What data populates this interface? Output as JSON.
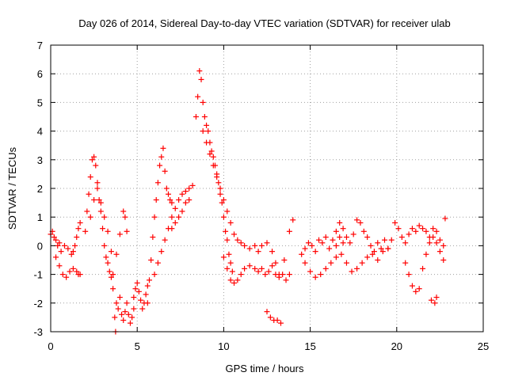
{
  "chart_data": {
    "type": "scatter",
    "title": "Day 026 of 2014, Sidereal Day-to-day VTEC variation (SDTVAR) for receiver ulab",
    "xlabel": "GPS time / hours",
    "ylabel": "SDTVAR / TECUs",
    "xlim": [
      0,
      25
    ],
    "ylim": [
      -3,
      7
    ],
    "xticks": [
      0,
      5,
      10,
      15,
      20,
      25
    ],
    "yticks": [
      -3,
      -2,
      -1,
      0,
      1,
      2,
      3,
      4,
      5,
      6,
      7
    ],
    "grid": true,
    "marker": "+",
    "series": [
      {
        "name": "SDTVAR",
        "color": "#ff0000",
        "x": [
          0.0,
          0.1,
          0.2,
          0.3,
          0.4,
          0.5,
          0.6,
          0.8,
          1.0,
          1.2,
          1.3,
          1.4,
          1.5,
          1.6,
          1.7,
          0.3,
          0.5,
          0.7,
          0.9,
          1.1,
          1.3,
          1.5,
          1.6,
          1.7,
          2.0,
          2.1,
          2.2,
          2.3,
          2.4,
          2.5,
          2.6,
          2.7,
          2.8,
          2.9,
          3.0,
          3.1,
          3.2,
          3.3,
          3.4,
          3.5,
          3.6,
          2.3,
          2.5,
          2.7,
          2.9,
          3.1,
          3.3,
          3.5,
          3.6,
          3.7,
          3.75,
          3.8,
          3.9,
          4.0,
          4.1,
          4.2,
          4.3,
          4.4,
          4.5,
          4.6,
          4.7,
          4.8,
          3.8,
          4.0,
          4.2,
          4.3,
          4.4,
          4.8,
          4.9,
          5.0,
          5.1,
          5.2,
          5.3,
          5.4,
          5.5,
          5.6,
          5.6,
          5.7,
          5.8,
          5.9,
          6.0,
          6.1,
          6.2,
          6.3,
          6.4,
          6.5,
          6.6,
          6.7,
          6.8,
          6.9,
          7.0,
          6.0,
          6.2,
          6.4,
          6.6,
          6.8,
          7.0,
          7.2,
          7.4,
          7.6,
          7.8,
          8.0,
          8.2,
          7.0,
          7.2,
          7.4,
          7.6,
          7.8,
          8.0,
          8.4,
          8.5,
          8.6,
          8.7,
          8.8,
          8.9,
          9.0,
          9.1,
          9.2,
          9.3,
          9.4,
          9.5,
          9.6,
          9.7,
          9.8,
          9.9,
          10.0,
          10.1,
          10.2,
          10.3,
          10.4,
          10.5,
          8.8,
          9.0,
          9.2,
          9.4,
          9.6,
          9.8,
          10.0,
          10.2,
          10.4,
          10.6,
          10.8,
          11.0,
          11.2,
          11.5,
          11.8,
          12.0,
          12.2,
          12.5,
          12.8,
          13.0,
          13.2,
          13.5,
          13.8,
          14.0,
          10.0,
          10.2,
          10.4,
          10.6,
          10.8,
          11.0,
          11.2,
          11.5,
          11.8,
          12.0,
          12.2,
          12.4,
          12.6,
          12.8,
          13.0,
          13.2,
          13.4,
          13.6,
          13.8,
          12.5,
          12.7,
          12.9,
          13.1,
          13.3,
          14.5,
          14.7,
          14.9,
          15.1,
          15.3,
          15.5,
          15.7,
          15.9,
          16.1,
          16.3,
          16.5,
          16.7,
          16.9,
          14.7,
          15.0,
          15.3,
          15.6,
          15.9,
          16.2,
          16.5,
          16.5,
          16.7,
          16.9,
          17.1,
          17.3,
          17.5,
          17.7,
          17.9,
          18.1,
          18.3,
          18.5,
          18.7,
          18.9,
          19.1,
          19.3,
          16.8,
          17.1,
          17.4,
          17.7,
          18.0,
          18.3,
          18.6,
          18.9,
          19.2,
          19.5,
          19.5,
          19.7,
          19.9,
          20.1,
          20.3,
          20.5,
          20.7,
          20.9,
          21.1,
          21.3,
          21.5,
          21.7,
          21.9,
          22.1,
          22.3,
          22.5,
          22.7,
          20.5,
          20.7,
          20.9,
          21.1,
          21.3,
          21.5,
          21.7,
          21.9,
          22.1,
          22.3,
          22.5,
          22.7,
          22.0,
          22.2,
          22.3,
          22.8
        ],
        "y": [
          0.4,
          0.5,
          0.3,
          0.2,
          0.0,
          0.1,
          -0.2,
          0.0,
          -0.1,
          -0.3,
          -0.2,
          0.0,
          0.3,
          0.6,
          0.8,
          -0.4,
          -0.7,
          -1.0,
          -1.1,
          -0.9,
          -0.8,
          -0.9,
          -1.0,
          -1.0,
          0.5,
          1.2,
          1.8,
          2.4,
          3.0,
          3.1,
          2.8,
          2.2,
          1.6,
          1.2,
          0.6,
          0.0,
          -0.4,
          -0.6,
          -0.9,
          -1.1,
          -1.0,
          1.0,
          1.6,
          2.0,
          1.5,
          1.0,
          0.5,
          -0.2,
          -1.5,
          -2.5,
          -3.0,
          -2.0,
          -2.2,
          -1.8,
          -2.4,
          -2.6,
          -2.3,
          -2.0,
          -2.4,
          -2.7,
          -2.5,
          -2.2,
          -0.3,
          0.4,
          1.2,
          1.0,
          0.5,
          -1.8,
          -1.5,
          -1.3,
          -1.6,
          -1.9,
          -2.2,
          -2.0,
          -1.7,
          -1.4,
          -2.0,
          -1.2,
          -0.5,
          0.3,
          1.0,
          1.6,
          2.2,
          2.8,
          3.1,
          3.4,
          2.6,
          2.0,
          1.8,
          1.6,
          1.5,
          -1.0,
          -0.6,
          -0.2,
          0.2,
          0.6,
          1.0,
          1.3,
          1.6,
          1.8,
          1.9,
          2.0,
          2.1,
          0.6,
          0.8,
          1.0,
          1.2,
          1.5,
          1.6,
          4.5,
          5.2,
          6.1,
          5.8,
          5.0,
          4.5,
          4.2,
          4.0,
          3.6,
          3.3,
          3.1,
          2.8,
          2.5,
          2.2,
          1.8,
          1.5,
          1.0,
          0.5,
          0.2,
          -0.3,
          -0.6,
          -0.9,
          4.0,
          3.6,
          3.2,
          2.8,
          2.4,
          2.0,
          1.6,
          1.2,
          0.8,
          0.4,
          0.2,
          0.1,
          0.0,
          -0.1,
          0.0,
          -0.2,
          0.0,
          0.1,
          -0.2,
          -0.6,
          -1.0,
          -0.5,
          0.5,
          0.9,
          -0.4,
          -0.8,
          -1.2,
          -1.3,
          -1.2,
          -1.0,
          -0.8,
          -0.7,
          -0.8,
          -0.9,
          -0.8,
          -1.0,
          -0.9,
          -0.7,
          -1.0,
          -1.1,
          -1.0,
          -1.2,
          -1.0,
          -2.3,
          -2.5,
          -2.6,
          -2.6,
          -2.7,
          -0.3,
          -0.1,
          0.1,
          0.0,
          -0.2,
          0.2,
          0.1,
          0.3,
          -0.1,
          0.2,
          0.0,
          0.3,
          0.1,
          -0.6,
          -0.9,
          -1.1,
          -1.0,
          -0.8,
          -0.6,
          -0.4,
          0.5,
          0.8,
          0.6,
          0.3,
          0.1,
          0.4,
          0.9,
          0.8,
          0.5,
          0.3,
          0.0,
          -0.2,
          0.1,
          -0.1,
          0.2,
          -0.3,
          -0.6,
          -0.9,
          -0.8,
          -0.6,
          -0.4,
          -0.3,
          -0.5,
          -0.2,
          -0.1,
          -0.1,
          0.2,
          0.8,
          0.6,
          0.3,
          0.1,
          0.4,
          0.6,
          0.5,
          0.7,
          0.6,
          0.5,
          0.3,
          0.6,
          0.5,
          0.2,
          0.0,
          -0.6,
          -1.0,
          -1.4,
          -1.6,
          -1.5,
          -0.8,
          -0.3,
          0.1,
          0.3,
          0.1,
          -0.2,
          -0.5,
          -1.9,
          -2.0,
          -1.8,
          0.95
        ]
      }
    ]
  }
}
